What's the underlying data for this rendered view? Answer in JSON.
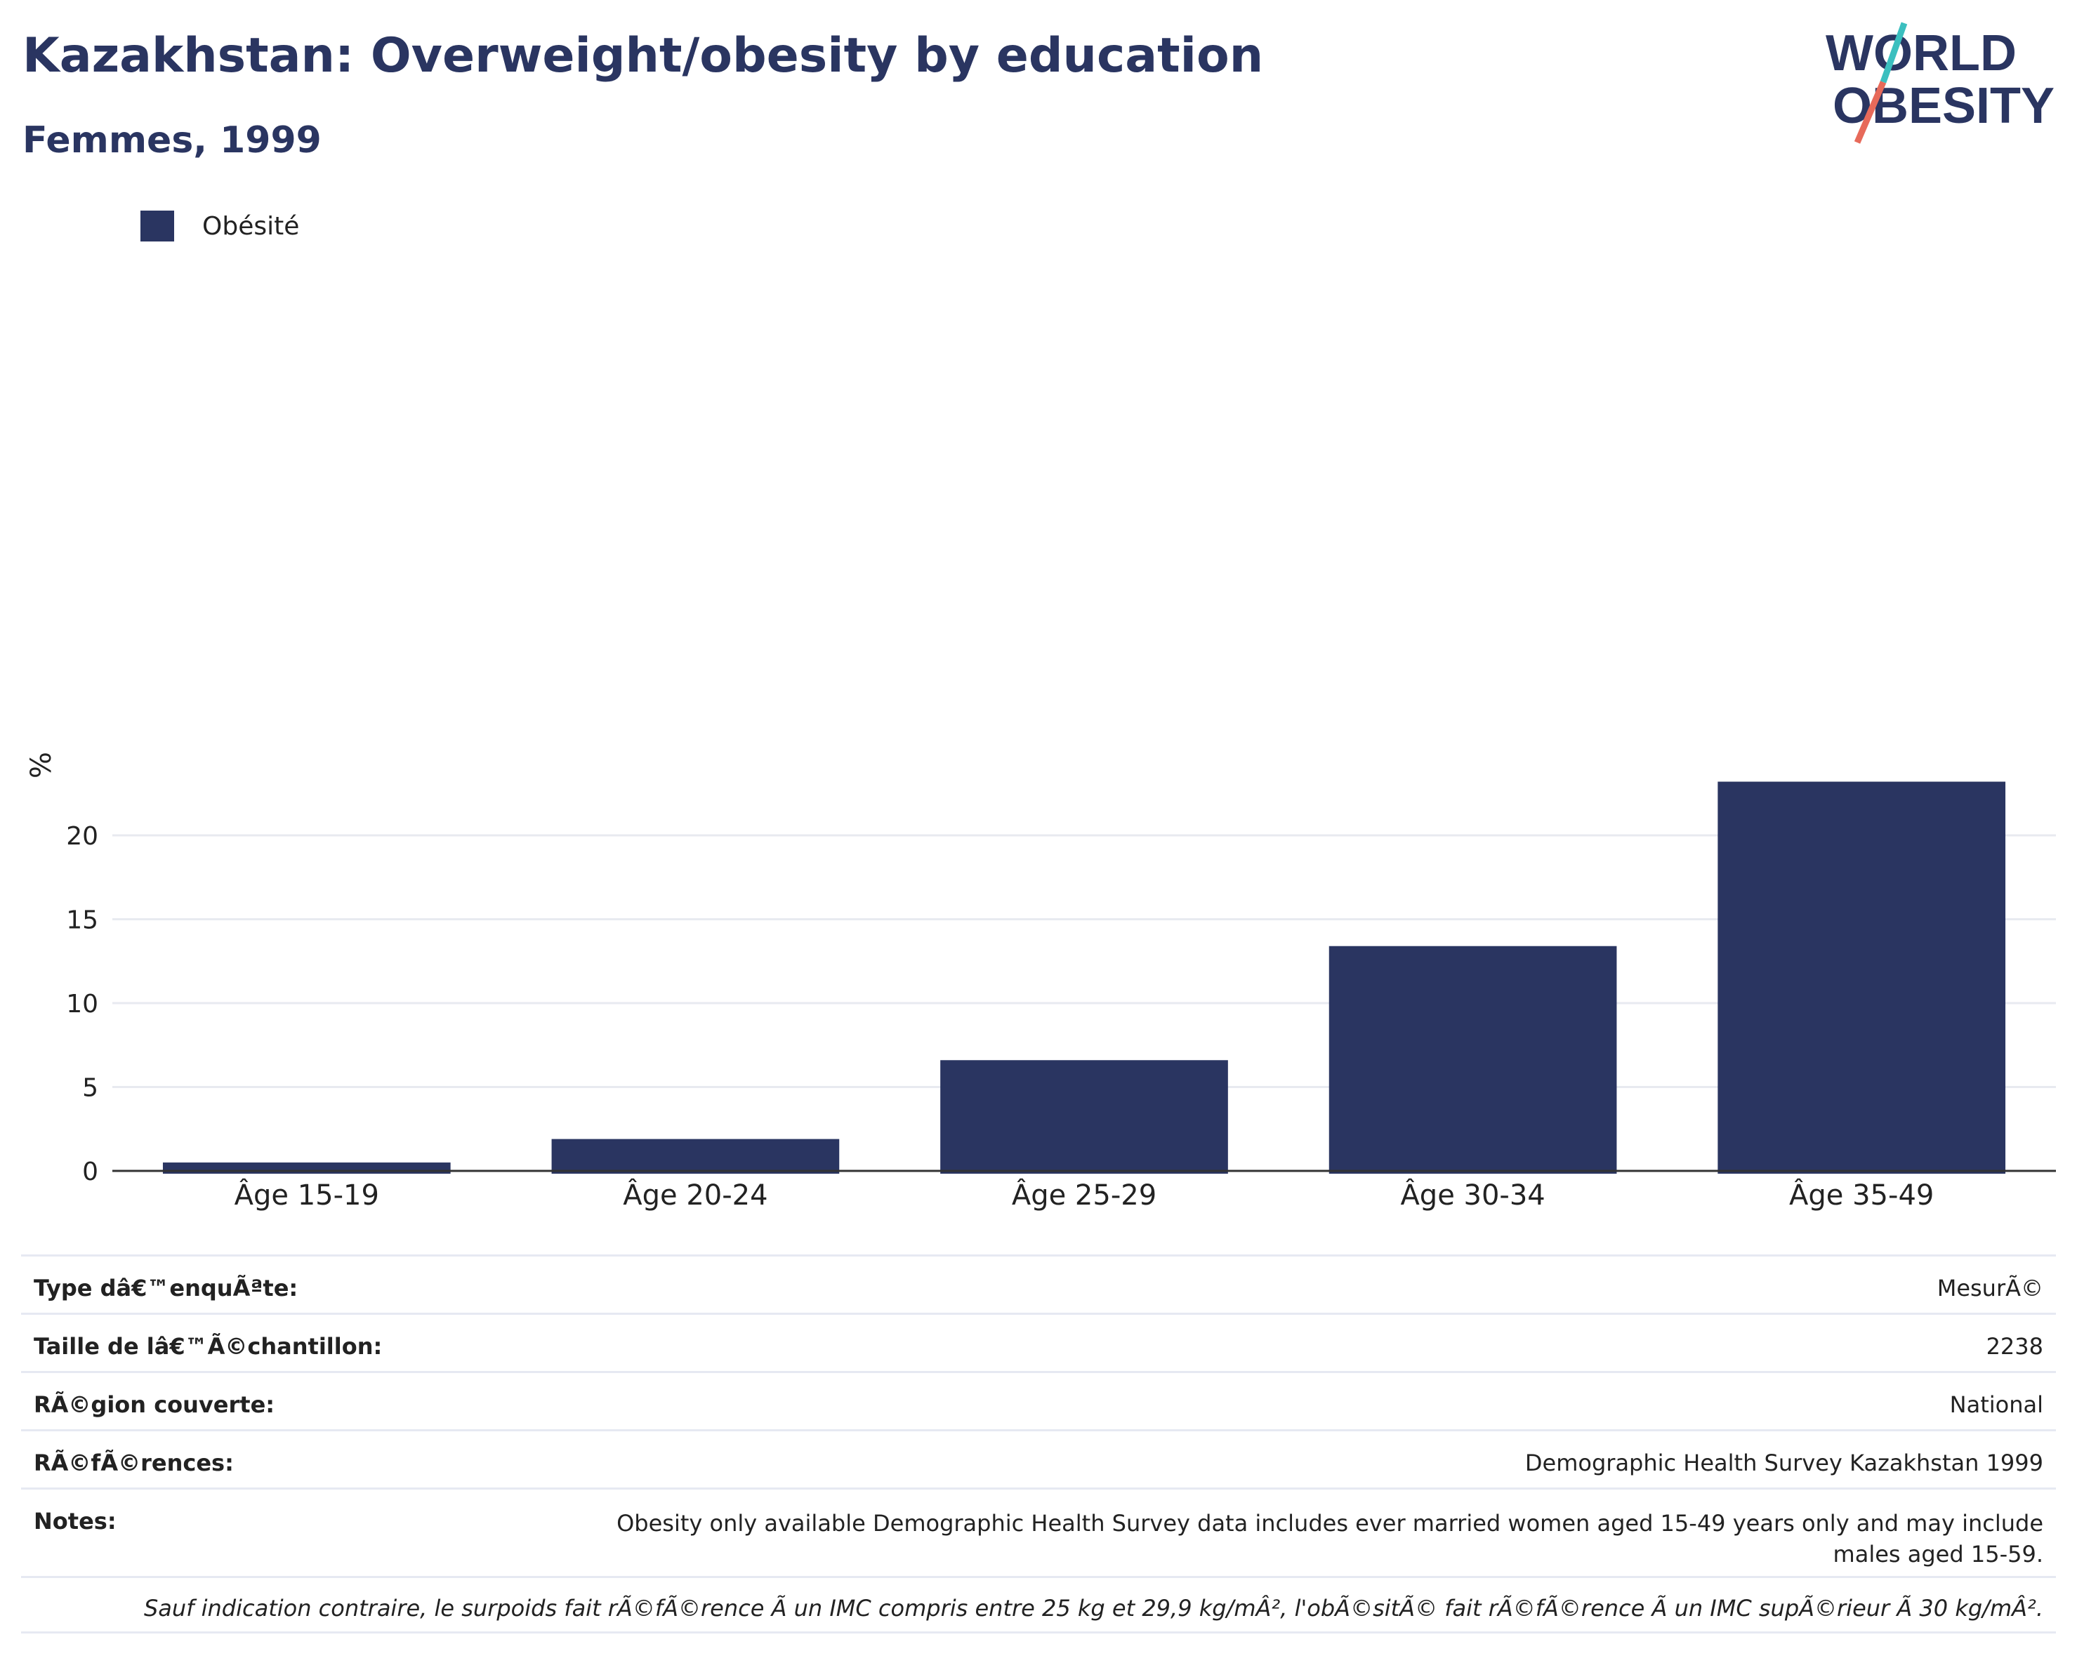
{
  "header": {
    "title": "Kazakhstan: Overweight/obesity by education",
    "subtitle": "Femmes, 1999"
  },
  "logo": {
    "line1": "WORLD",
    "line2": "OBESITY",
    "colors": {
      "text": "#2a3561",
      "slash_top": "#3bbfbf",
      "slash_bottom": "#e76a5a"
    }
  },
  "legend": {
    "label": "Obésité",
    "color": "#2a3561"
  },
  "chart_data": {
    "type": "bar",
    "categories": [
      "Âge 15-19",
      "Âge 20-24",
      "Âge 25-29",
      "Âge 30-34",
      "Âge 35-49"
    ],
    "series": [
      {
        "name": "Obésité",
        "values": [
          0.5,
          1.9,
          6.6,
          13.4,
          23.2
        ],
        "color": "#2a3561"
      }
    ],
    "ylabel": "%",
    "xlabel": "",
    "yticks": [
      0,
      5,
      10,
      15,
      20
    ],
    "ylim": [
      0,
      25
    ],
    "grid": true,
    "legend_position": "top-left"
  },
  "info": {
    "survey_type": {
      "label": "Type dâ€™enquÃªte:",
      "value": "MesurÃ©"
    },
    "sample_size": {
      "label": "Taille de lâ€™Ã©chantillon:",
      "value": "2238"
    },
    "region": {
      "label": "RÃ©gion couverte:",
      "value": "National"
    },
    "references": {
      "label": "RÃ©fÃ©rences:",
      "value": "Demographic Health Survey Kazakhstan 1999"
    },
    "notes": {
      "label": "Notes:",
      "value": "Obesity only available Demographic Health Survey data includes ever married women aged 15-49 years only and may include males aged 15-59."
    },
    "footnote": "Sauf indication contraire, le surpoids fait rÃ©fÃ©rence Ã  un IMC compris entre 25 kg et 29,9 kg/mÂ², l'obÃ©sitÃ© fait rÃ©fÃ©rence Ã  un IMC supÃ©rieur Ã  30 kg/mÂ²."
  }
}
